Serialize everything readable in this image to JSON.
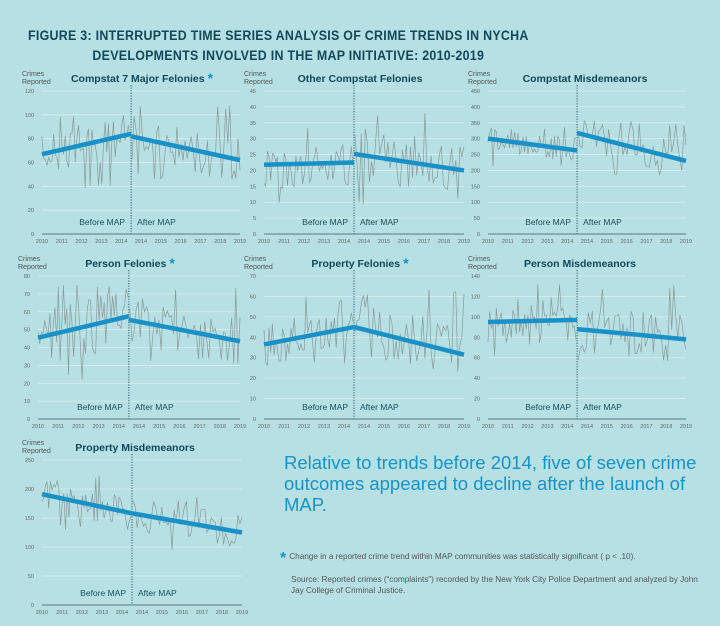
{
  "figure": {
    "title_line1": "FIGURE 3: INTERRUPTED TIME SERIES ANALYSIS OF CRIME TRENDS IN NYCHA",
    "title_line2": "DEVELOPMENTS INVOLVED IN THE MAP INITIATIVE: 2010-2019"
  },
  "summary": "Relative to trends before 2014, five of seven crime outcomes appeared to decline after the launch of MAP.",
  "footnote": {
    "star": "*",
    "text": "Change in a reported crime trend within MAP communities was statistically significant ( p < .10)."
  },
  "source": "Source: Reported crimes (“complaints”) recorded by the New York City Police Department and analyzed by John Jay College of Criminal Justice.",
  "colors": {
    "background": "#b6e0e3",
    "title": "#11485a",
    "trend": "#1890c8",
    "raw_series": "#8a9a9c",
    "gridline": "#cfe9eb",
    "accent_star": "#1493c9"
  },
  "chart_data": [
    {
      "type": "line",
      "title": "Compstat 7 Major Felonies",
      "significant": true,
      "ylabel": "Crimes Reported",
      "ylim": [
        0,
        120
      ],
      "yticks": [
        0,
        20,
        40,
        60,
        80,
        100,
        120
      ],
      "xticks": [
        "2010",
        "2011",
        "2012",
        "2013",
        "2014",
        "2014",
        "2015",
        "2016",
        "2017",
        "2018",
        "2019"
      ],
      "annotations": {
        "before": "Before MAP",
        "after": "After MAP"
      },
      "intervention": "mid-2014",
      "series": [
        {
          "name": "Before MAP trend",
          "start": 67,
          "end": 84
        },
        {
          "name": "After MAP trend",
          "start": 82,
          "end": 62
        }
      ],
      "raw_range": {
        "before": [
          38,
          100
        ],
        "after": [
          46,
          109
        ]
      }
    },
    {
      "type": "line",
      "title": "Other Compstat Felonies",
      "significant": false,
      "ylabel": "Crimes Reported",
      "ylim": [
        0,
        45
      ],
      "yticks": [
        0,
        5,
        10,
        15,
        20,
        25,
        30,
        35,
        40,
        45
      ],
      "xticks": [
        "2010",
        "2011",
        "2012",
        "2013",
        "2014",
        "2014",
        "2015",
        "2016",
        "2017",
        "2018",
        "2019"
      ],
      "annotations": {
        "before": "Before MAP",
        "after": "After MAP"
      },
      "intervention": "mid-2014",
      "series": [
        {
          "name": "Before MAP trend",
          "start": 21.8,
          "end": 22.5
        },
        {
          "name": "After MAP trend",
          "start": 25.2,
          "end": 20.0
        }
      ],
      "raw_range": {
        "before": [
          9,
          34
        ],
        "after": [
          9,
          39
        ]
      }
    },
    {
      "type": "line",
      "title": "Compstat Misdemeanors",
      "significant": false,
      "ylabel": "Crimes Reported",
      "ylim": [
        0,
        450
      ],
      "yticks": [
        0,
        50,
        100,
        150,
        200,
        250,
        300,
        350,
        400,
        450
      ],
      "xticks": [
        "2010",
        "2011",
        "2012",
        "2013",
        "2014",
        "2014",
        "2015",
        "2016",
        "2017",
        "2018",
        "2019"
      ],
      "annotations": {
        "before": "Before MAP",
        "after": "After MAP"
      },
      "intervention": "mid-2014",
      "series": [
        {
          "name": "Before MAP trend",
          "start": 300,
          "end": 263
        },
        {
          "name": "After MAP trend",
          "start": 318,
          "end": 230
        }
      ],
      "raw_range": {
        "before": [
          212,
          338
        ],
        "after": [
          182,
          356
        ]
      }
    },
    {
      "type": "line",
      "title": "Person Felonies",
      "significant": true,
      "ylabel": "Crimes Reported",
      "ylim": [
        0,
        80
      ],
      "yticks": [
        0,
        10,
        20,
        30,
        40,
        50,
        60,
        70,
        80
      ],
      "xticks": [
        "2010",
        "2011",
        "2012",
        "2013",
        "2014",
        "2014",
        "2015",
        "2016",
        "2017",
        "2018",
        "2019"
      ],
      "annotations": {
        "before": "Before MAP",
        "after": "After MAP"
      },
      "intervention": "mid-2014",
      "series": [
        {
          "name": "Before MAP trend",
          "start": 45.5,
          "end": 57.5
        },
        {
          "name": "After MAP trend",
          "start": 55.5,
          "end": 43.5
        }
      ],
      "raw_range": {
        "before": [
          21,
          75
        ],
        "after": [
          31,
          75
        ]
      }
    },
    {
      "type": "line",
      "title": "Property Felonies",
      "significant": true,
      "ylabel": "Crimes Reported",
      "ylim": [
        0,
        70
      ],
      "yticks": [
        0,
        10,
        20,
        30,
        40,
        50,
        60,
        70
      ],
      "xticks": [
        "2010",
        "2011",
        "2012",
        "2013",
        "2014",
        "2014",
        "2015",
        "2016",
        "2017",
        "2018",
        "2019"
      ],
      "annotations": {
        "before": "Before MAP",
        "after": "After MAP"
      },
      "intervention": "mid-2014",
      "series": [
        {
          "name": "Before MAP trend",
          "start": 36.5,
          "end": 45
        },
        {
          "name": "After MAP trend",
          "start": 45,
          "end": 31.5
        }
      ],
      "raw_range": {
        "before": [
          25,
          60
        ],
        "after": [
          19,
          64
        ]
      }
    },
    {
      "type": "line",
      "title": "Person Misdemeanors",
      "significant": false,
      "ylabel": "Crimes Reported",
      "ylim": [
        0,
        140
      ],
      "yticks": [
        0,
        20,
        40,
        60,
        80,
        100,
        120,
        140
      ],
      "xticks": [
        "2010",
        "2011",
        "2012",
        "2013",
        "2014",
        "2014",
        "2015",
        "2016",
        "2017",
        "2018",
        "2019"
      ],
      "annotations": {
        "before": "Before MAP",
        "after": "After MAP"
      },
      "intervention": "mid-2014",
      "series": [
        {
          "name": "Before MAP trend",
          "start": 95,
          "end": 97
        },
        {
          "name": "After MAP trend",
          "start": 88,
          "end": 78
        }
      ],
      "raw_range": {
        "before": [
          59,
          133
        ],
        "after": [
          57,
          133
        ]
      }
    },
    {
      "type": "line",
      "title": "Property Misdemeanors",
      "significant": false,
      "ylabel": "Crimes Reported",
      "ylim": [
        0,
        250
      ],
      "yticks": [
        0,
        50,
        100,
        150,
        200,
        250
      ],
      "xticks": [
        "2010",
        "2011",
        "2012",
        "2013",
        "2014",
        "2014",
        "2015",
        "2016",
        "2017",
        "2018",
        "2019"
      ],
      "annotations": {
        "before": "Before MAP",
        "after": "After MAP"
      },
      "intervention": "mid-2014",
      "series": [
        {
          "name": "Before MAP trend",
          "start": 191,
          "end": 158
        },
        {
          "name": "After MAP trend",
          "start": 158,
          "end": 125
        }
      ],
      "raw_range": {
        "before": [
          130,
          226
        ],
        "after": [
          91,
          186
        ]
      }
    }
  ]
}
